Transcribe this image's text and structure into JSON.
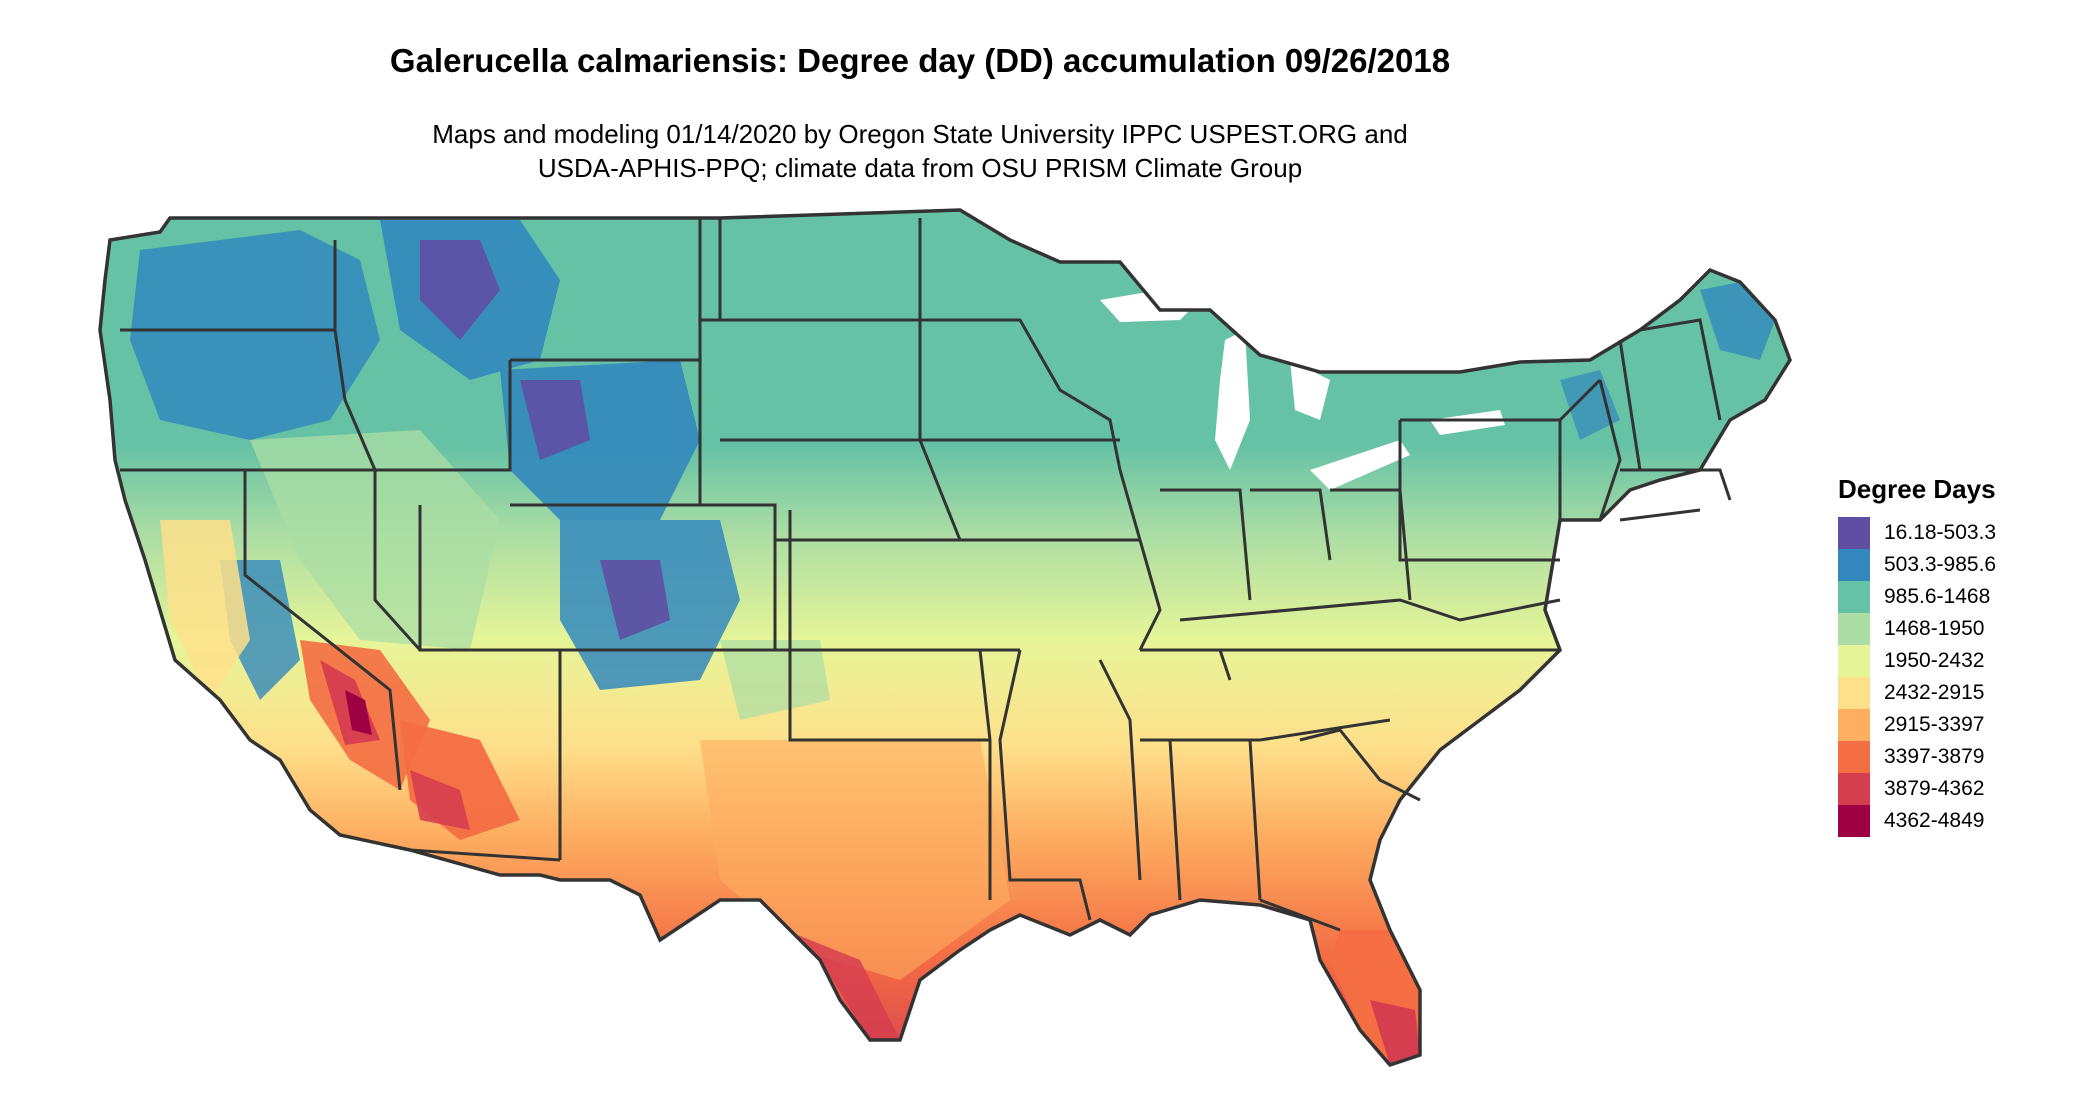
{
  "header": {
    "title": "Galerucella calmariensis: Degree day (DD) accumulation 09/26/2018",
    "subtitle_line1": "Maps and modeling 01/14/2020 by Oregon State University IPPC USPEST.ORG and",
    "subtitle_line2": "USDA-APHIS-PPQ; climate data from OSU PRISM Climate Group"
  },
  "legend": {
    "title": "Degree Days",
    "items": [
      {
        "label": "16.18-503.3",
        "color": "#5e4fa2"
      },
      {
        "label": "503.3-985.6",
        "color": "#3288bd"
      },
      {
        "label": "985.6-1468",
        "color": "#66c2a5"
      },
      {
        "label": "1468-1950",
        "color": "#abdda4"
      },
      {
        "label": "1950-2432",
        "color": "#e6f598"
      },
      {
        "label": "2432-2915",
        "color": "#fee08b"
      },
      {
        "label": "2915-3397",
        "color": "#fdae61"
      },
      {
        "label": "3397-3879",
        "color": "#f46d43"
      },
      {
        "label": "3879-4362",
        "color": "#d53e4f"
      },
      {
        "label": "4362-4849",
        "color": "#9e0142"
      }
    ]
  },
  "map": {
    "border_color": "#333333"
  }
}
